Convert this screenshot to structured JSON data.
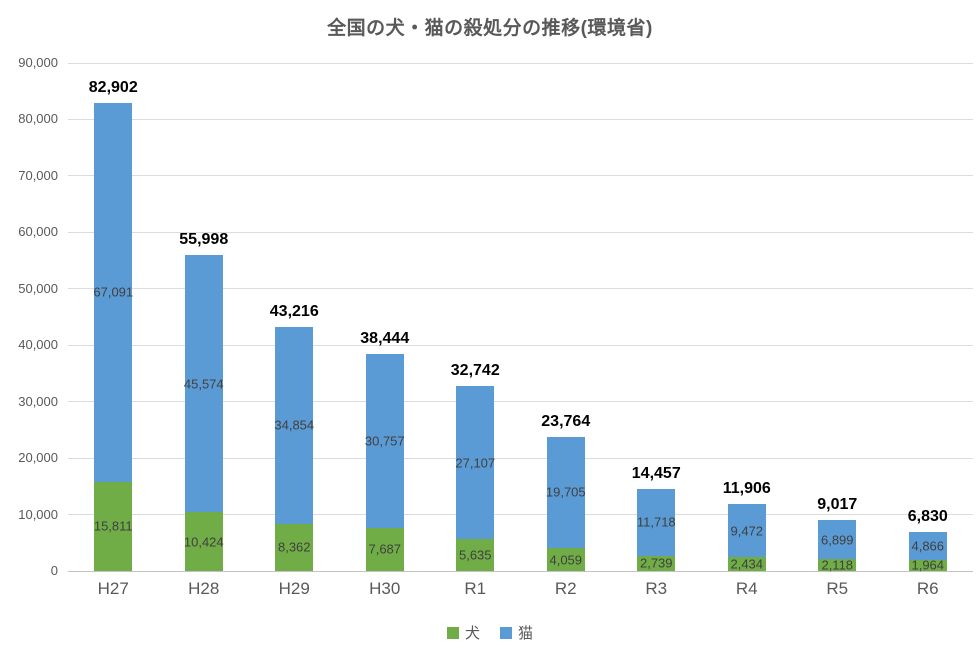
{
  "title": "全国の犬・猫の殺処分の推移(環境省)",
  "legend": {
    "dog": "犬",
    "cat": "猫"
  },
  "colors": {
    "dog": "#70AD47",
    "cat": "#5B9BD5",
    "grid": "#DCDCDC",
    "axis": "#C3C3C3",
    "title_text": "#595959",
    "tick_text": "#595959",
    "inner_label": "#404040",
    "total_label": "#000000"
  },
  "chart_data": {
    "type": "bar",
    "stacked": true,
    "title": "全国の犬・猫の殺処分の推移(環境省)",
    "categories": [
      "H27",
      "H28",
      "H29",
      "H30",
      "R1",
      "R2",
      "R3",
      "R4",
      "R5",
      "R6"
    ],
    "series": [
      {
        "name": "犬",
        "color": "#70AD47",
        "values": [
          15811,
          10424,
          8362,
          7687,
          5635,
          4059,
          2739,
          2434,
          2118,
          1964
        ]
      },
      {
        "name": "猫",
        "color": "#5B9BD5",
        "values": [
          67091,
          45574,
          34854,
          30757,
          27107,
          19705,
          11718,
          9472,
          6899,
          4866
        ]
      }
    ],
    "totals": [
      82902,
      55998,
      43216,
      38444,
      32742,
      23764,
      14457,
      11906,
      9017,
      6830
    ],
    "xlabel": "",
    "ylabel": "",
    "ylim": [
      0,
      90000
    ],
    "ytick_step": 10000,
    "ytick_labels": [
      "0",
      "10,000",
      "20,000",
      "30,000",
      "40,000",
      "50,000",
      "60,000",
      "70,000",
      "80,000",
      "90,000"
    ],
    "grid": "horizontal",
    "legend_position": "bottom",
    "data_labels": "inside-segments-and-total-above"
  }
}
